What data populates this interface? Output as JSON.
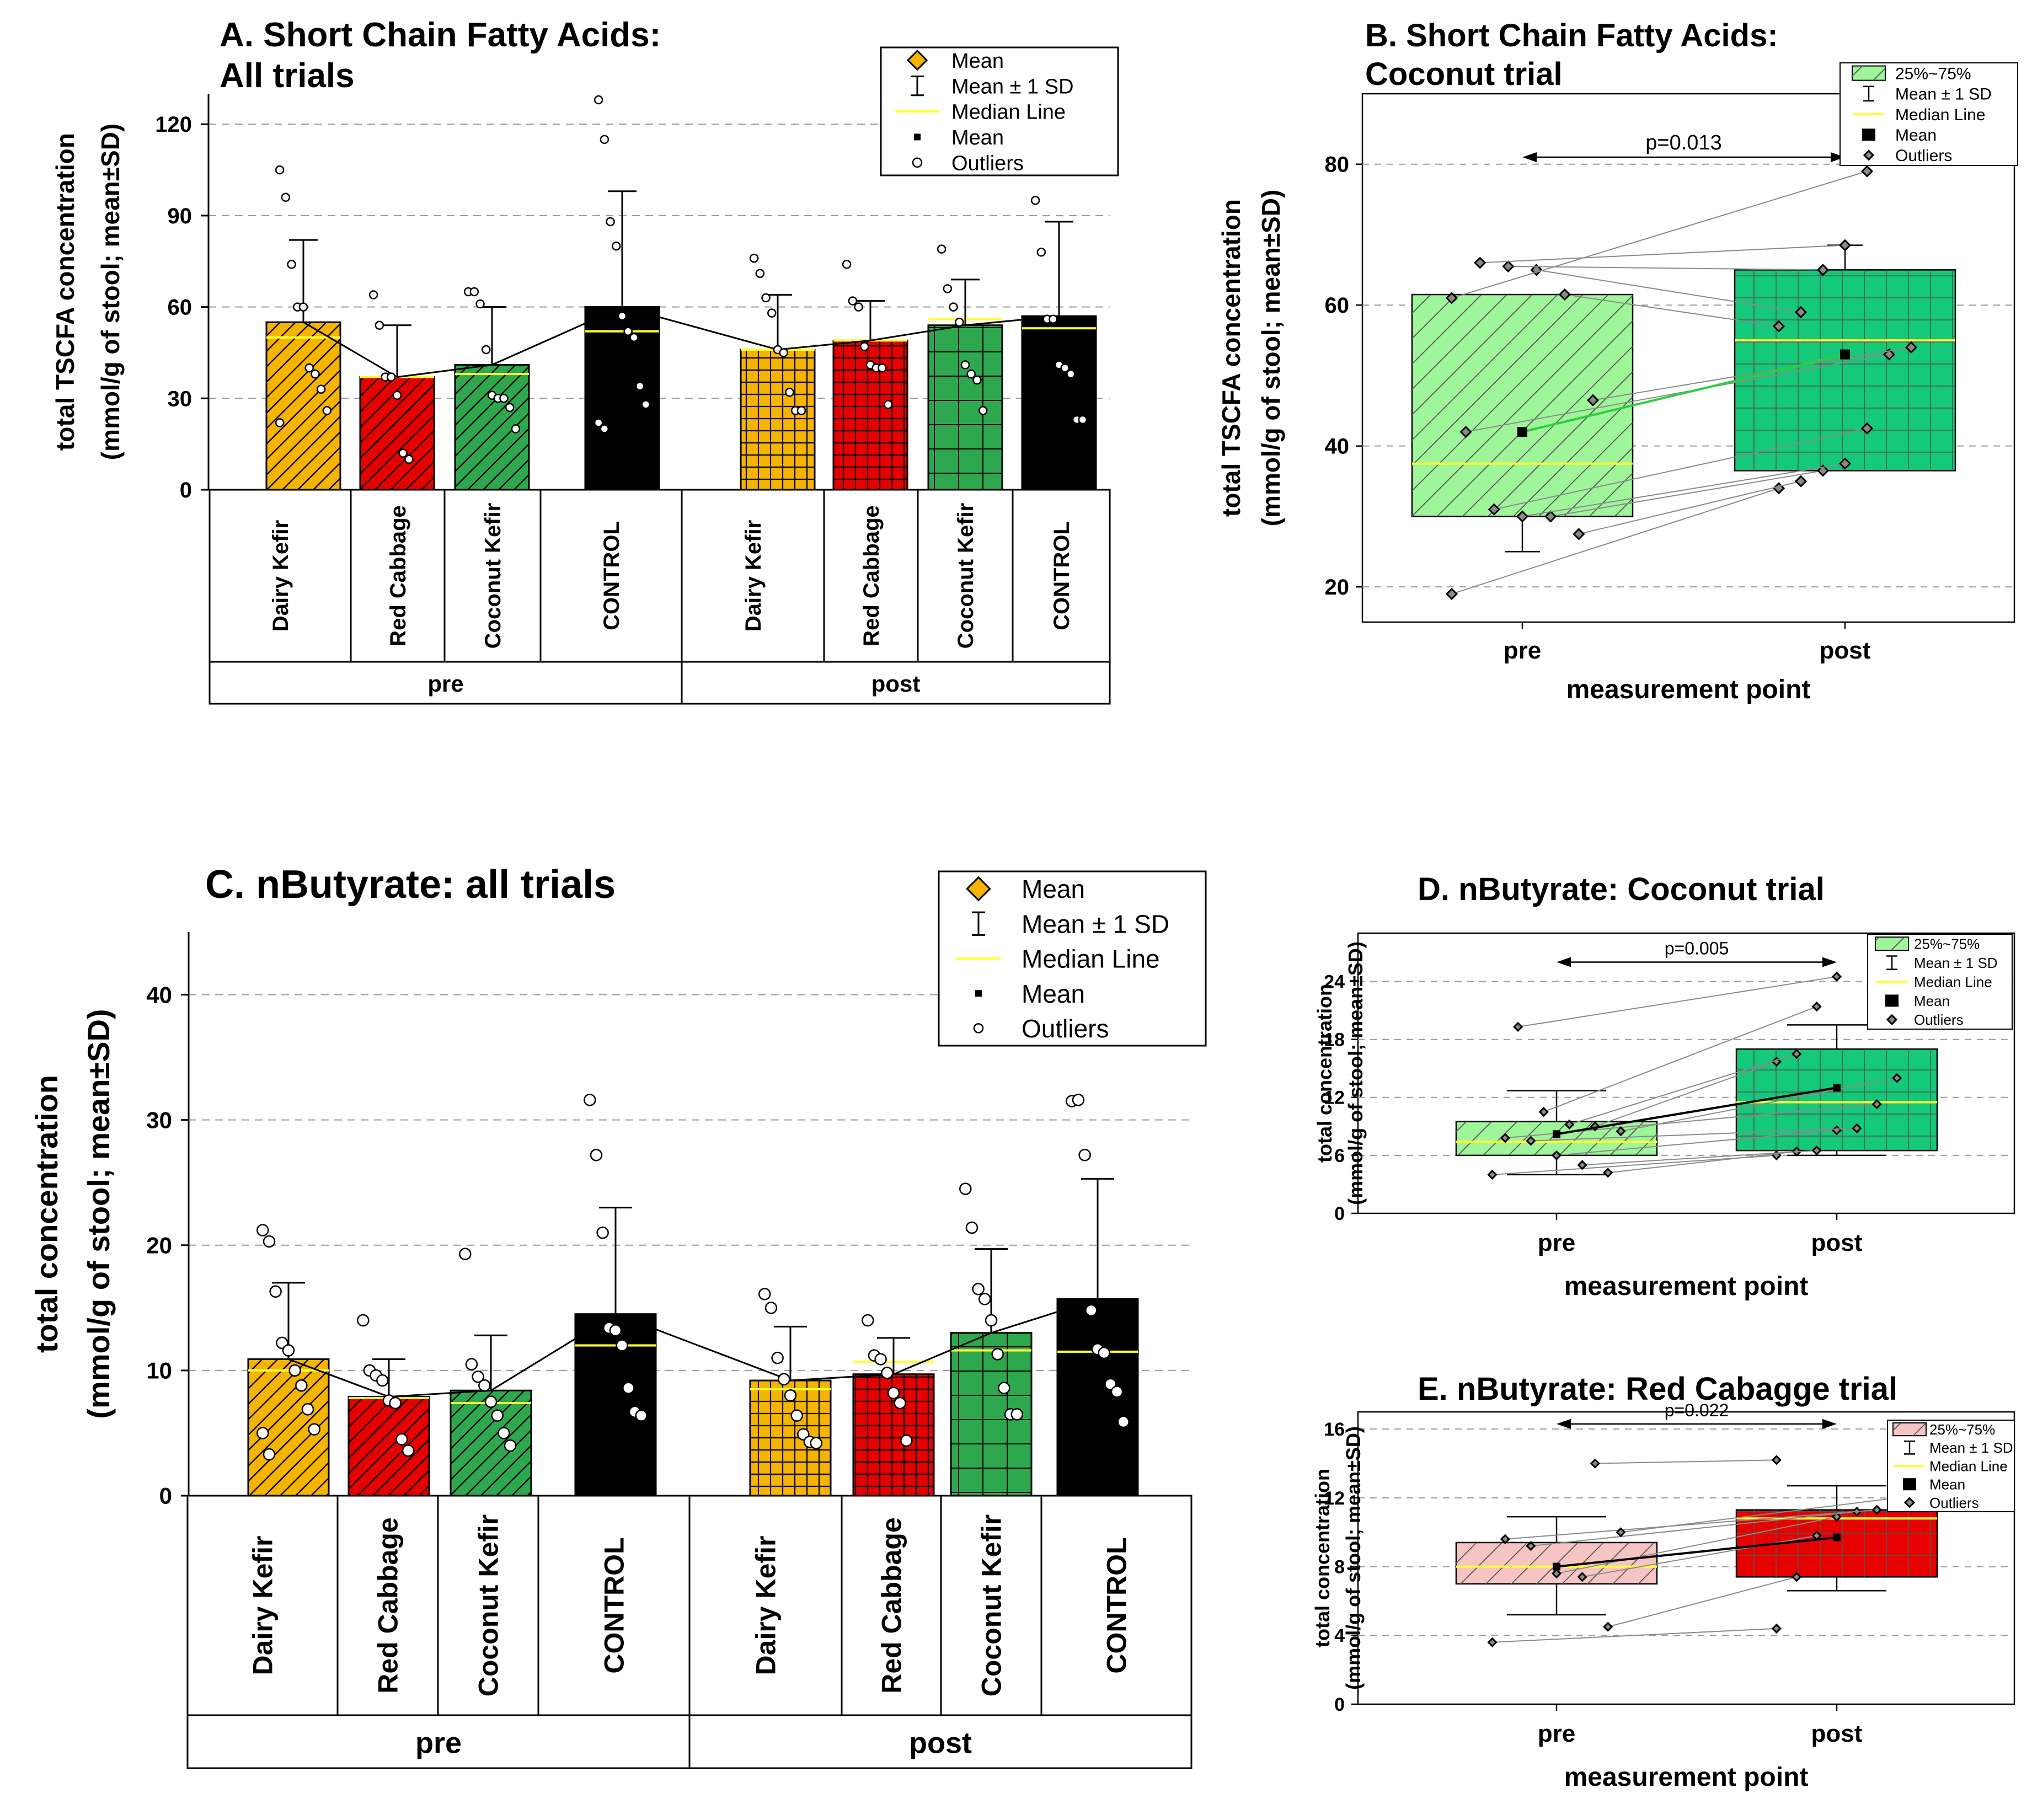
{
  "chart_data": [
    {
      "id": "A",
      "type": "bar",
      "title": "A. Short Chain Fatty Acids: All trials",
      "title_lines": [
        "A. Short Chain Fatty Acids:",
        "All trials"
      ],
      "ylabel_lines": [
        "total TSCFA concentration",
        "(mmol/g of stool; mean±SD)"
      ],
      "ylim": [
        0,
        130
      ],
      "yticks": [
        0,
        30,
        60,
        90,
        120
      ],
      "grid": true,
      "legend_position": "top-right",
      "legend": [
        "Mean",
        "Mean ± 1 SD",
        "Median Line",
        "Mean",
        "Outliers"
      ],
      "group_labels": [
        "pre",
        "post"
      ],
      "categories": [
        "Dairy Kefir",
        "Red Cabbage",
        "Coconut Kefir",
        "CONTROL",
        "Dairy Kefir",
        "Red Cabbage",
        "Coconut Kefir",
        "CONTROL"
      ],
      "values": [
        55,
        37,
        41,
        60,
        46,
        49,
        54,
        57
      ],
      "sd_upper": [
        82,
        54,
        60,
        98,
        64,
        62,
        69,
        88
      ],
      "medians": [
        50,
        37,
        38,
        52,
        46,
        49,
        56,
        53
      ],
      "outliers": [
        [
          105,
          96,
          74,
          60,
          60,
          40,
          38,
          33,
          26,
          22
        ],
        [
          64,
          54,
          37,
          37,
          31,
          12,
          10
        ],
        [
          65,
          65,
          61,
          46,
          31,
          30,
          30,
          27,
          20
        ],
        [
          128,
          115,
          88,
          80,
          57,
          52,
          50,
          34,
          28,
          22,
          20
        ],
        [
          76,
          71,
          63,
          58,
          46,
          45,
          32,
          26,
          26
        ],
        [
          74,
          62,
          60,
          47,
          41,
          40,
          40,
          28
        ],
        [
          79,
          66,
          60,
          55,
          41,
          38,
          36,
          26
        ],
        [
          95,
          78,
          56,
          56,
          41,
          40,
          38,
          23,
          23
        ]
      ],
      "colors": [
        "#f5b400",
        "#e60000",
        "#2ea84f",
        "#000000",
        "#f5b400",
        "#e60000",
        "#2ea84f",
        "#000000"
      ]
    },
    {
      "id": "B",
      "type": "box",
      "title": "B. Short Chain Fatty Acids: Coconut trial",
      "title_lines": [
        "B. Short Chain Fatty Acids:",
        "Coconut trial"
      ],
      "ylabel_lines": [
        "total TSCFA concentration",
        "(mmol/g of stool; mean±SD)"
      ],
      "xlabel": "measurement point",
      "categories": [
        "pre",
        "post"
      ],
      "ylim": [
        15,
        90
      ],
      "yticks": [
        20,
        40,
        60,
        80
      ],
      "annotation": "p=0.013",
      "legend": [
        "25%~75%",
        "Mean ± 1 SD",
        "Median Line",
        "Mean",
        "Outliers"
      ],
      "q1": [
        30,
        36.5
      ],
      "q3": [
        61.5,
        65
      ],
      "median": [
        37.5,
        55
      ],
      "mean": [
        42,
        53
      ],
      "sd_low": [
        25,
        37
      ],
      "sd_high": [
        59,
        68.5
      ],
      "paired": [
        [
          19,
          34
        ],
        [
          27.5,
          35
        ],
        [
          30,
          36.5
        ],
        [
          30,
          37.5
        ],
        [
          31,
          42.5
        ],
        [
          42,
          53
        ],
        [
          46.5,
          54
        ],
        [
          61.5,
          57
        ],
        [
          65,
          59
        ],
        [
          65.5,
          65
        ],
        [
          66,
          68.5
        ],
        [
          61,
          79
        ]
      ],
      "colors": [
        "#9ef59a",
        "#14c97a"
      ]
    },
    {
      "id": "C",
      "type": "bar",
      "title": "C. nButyrate: all trials",
      "ylabel_lines": [
        "total concentration",
        "(mmol/g of stool; mean±SD)"
      ],
      "ylim": [
        0,
        45
      ],
      "yticks": [
        0,
        10,
        20,
        30,
        40
      ],
      "grid": true,
      "legend_position": "top-right",
      "legend": [
        "Mean",
        "Mean ± 1 SD",
        "Median Line",
        "Mean",
        "Outliers"
      ],
      "group_labels": [
        "pre",
        "post"
      ],
      "categories": [
        "Dairy Kefir",
        "Red Cabbage",
        "Coconut Kefir",
        "CONTROL",
        "Dairy Kefir",
        "Red Cabbage",
        "Coconut Kefir",
        "CONTROL"
      ],
      "values": [
        10.9,
        7.9,
        8.4,
        14.5,
        9.2,
        9.7,
        13.0,
        15.7
      ],
      "sd_upper": [
        17.0,
        10.9,
        12.8,
        23.0,
        13.5,
        12.6,
        19.7,
        25.3
      ],
      "medians": [
        10,
        7.8,
        7.4,
        12,
        8.5,
        10.7,
        11.6,
        11.5
      ],
      "outliers": [
        [
          21.2,
          20.3,
          16.3,
          12.2,
          11.6,
          10.0,
          8.8,
          6.9,
          5.3,
          5.0,
          3.3
        ],
        [
          14.0,
          10.0,
          9.6,
          9.2,
          7.6,
          7.4,
          4.5,
          3.6
        ],
        [
          19.3,
          10.5,
          9.5,
          8.8,
          7.5,
          6.4,
          5.0,
          4.0
        ],
        [
          31.6,
          27.2,
          21.0,
          13.4,
          13.2,
          12.0,
          8.6,
          6.7,
          6.4
        ],
        [
          16.1,
          15.0,
          11.0,
          9.3,
          8.0,
          6.4,
          4.9,
          4.3,
          4.2
        ],
        [
          14.0,
          11.2,
          10.9,
          9.8,
          8.2,
          7.4,
          4.4
        ],
        [
          24.5,
          21.4,
          16.5,
          15.7,
          14.0,
          11.3,
          8.6,
          6.5,
          6.5
        ],
        [
          31.5,
          31.6,
          27.2,
          14.8,
          11.7,
          11.4,
          8.9,
          8.3,
          5.9
        ]
      ],
      "colors": [
        "#f5b400",
        "#e60000",
        "#2ea84f",
        "#000000",
        "#f5b400",
        "#e60000",
        "#2ea84f",
        "#000000"
      ]
    },
    {
      "id": "D",
      "type": "box",
      "title": "D. nButyrate: Coconut trial",
      "ylabel_lines": [
        "total concentration",
        "(mmol/g of stool; mean±SD)"
      ],
      "xlabel": "measurement point",
      "categories": [
        "pre",
        "post"
      ],
      "ylim": [
        0,
        29
      ],
      "yticks": [
        0,
        6,
        12,
        18,
        24
      ],
      "annotation": "p=0.005",
      "legend": [
        "25%~75%",
        "Mean ± 1 SD",
        "Median Line",
        "Mean",
        "Outliers"
      ],
      "q1": [
        6,
        6.5
      ],
      "q3": [
        9.5,
        17
      ],
      "median": [
        7.4,
        11.5
      ],
      "mean": [
        8.2,
        13
      ],
      "sd_low": [
        4,
        6
      ],
      "sd_high": [
        12.7,
        19.5
      ],
      "paired": [
        [
          4,
          6
        ],
        [
          4.2,
          6.4
        ],
        [
          5,
          6.5
        ],
        [
          6,
          8.6
        ],
        [
          7.5,
          8.8
        ],
        [
          7.8,
          11.3
        ],
        [
          8.5,
          14
        ],
        [
          9,
          15.7
        ],
        [
          9.2,
          16.5
        ],
        [
          10.5,
          21.4
        ],
        [
          19.3,
          24.5
        ]
      ],
      "colors": [
        "#9ef59a",
        "#14c97a"
      ]
    },
    {
      "id": "E",
      "type": "box",
      "title": "E. nButyrate: Red Cabagge trial",
      "ylabel_lines": [
        "total concentration",
        "(mmol/g of stool; mean±SD)"
      ],
      "xlabel": "measurement point",
      "categories": [
        "pre",
        "post"
      ],
      "ylim": [
        0,
        17
      ],
      "yticks": [
        0,
        4,
        8,
        12,
        16
      ],
      "annotation": "p=0.022",
      "legend": [
        "25%~75%",
        "Mean ± 1 SD",
        "Median Line",
        "Mean",
        "Outliers"
      ],
      "q1": [
        7,
        7.4
      ],
      "q3": [
        9.4,
        11.3
      ],
      "median": [
        8,
        10.8
      ],
      "mean": [
        8,
        9.7
      ],
      "sd_low": [
        5.2,
        6.6
      ],
      "sd_high": [
        10.9,
        12.7
      ],
      "paired": [
        [
          3.6,
          4.4
        ],
        [
          4.5,
          7.4
        ],
        [
          7.4,
          9.8
        ],
        [
          7.6,
          10.9
        ],
        [
          9.2,
          11.2
        ],
        [
          9.6,
          11.3
        ],
        [
          10,
          12
        ],
        [
          14,
          14.2
        ]
      ],
      "colors": [
        "#f7c4c4",
        "#e60000"
      ]
    }
  ]
}
